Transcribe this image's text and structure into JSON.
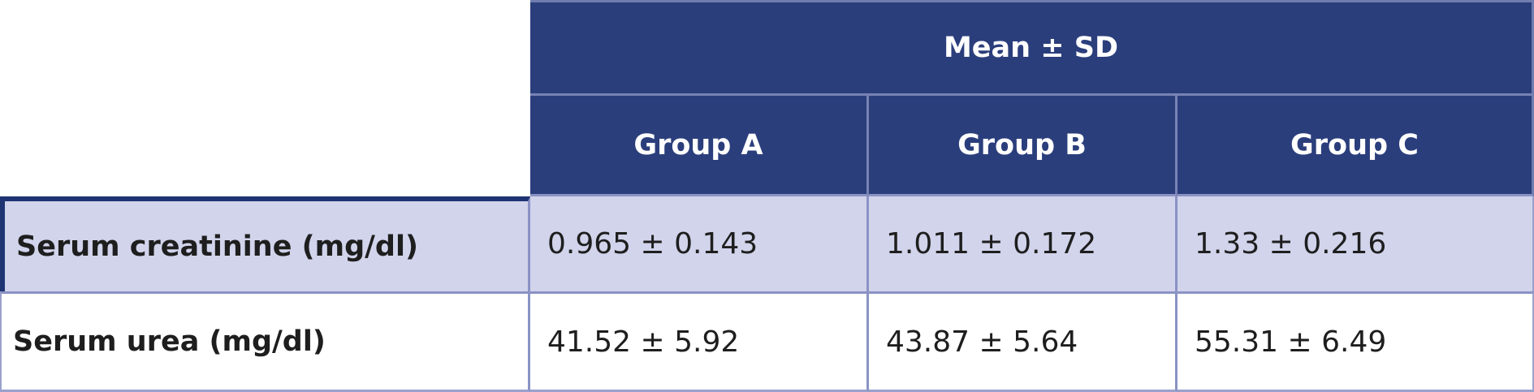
{
  "table": {
    "span_header": "Mean ± SD",
    "column_headers": [
      {
        "label": "Group A"
      },
      {
        "label": "Group B"
      },
      {
        "label": "Group C"
      }
    ],
    "rows": [
      {
        "label": "Serum creatinine (mg/dl)",
        "values": [
          "0.965 ± 0.143",
          "1.011 ± 0.172",
          "1.33 ± 0.216"
        ]
      },
      {
        "label": "Serum urea (mg/dl)",
        "values": [
          "41.52 ± 5.92",
          "43.87 ± 5.64",
          "55.31 ± 6.49"
        ]
      }
    ]
  },
  "colors": {
    "header_bg": "#2b3e7c",
    "header_text": "#ffffff",
    "highlight_row_bg": "#d1d4eb",
    "plain_row_bg": "#ffffff",
    "body_text": "#1e1e1e",
    "dark_border": "#1f3472",
    "light_border": "#8a93c4",
    "header_divider": "#7883b4",
    "outer_border": "#99a1cc"
  },
  "chart_data": {
    "type": "table",
    "title": "Mean ± SD",
    "columns": [
      "",
      "Group A",
      "Group B",
      "Group C"
    ],
    "rows": [
      [
        "Serum creatinine (mg/dl)",
        "0.965 ± 0.143",
        "1.011 ± 0.172",
        "1.33 ± 0.216"
      ],
      [
        "Serum urea (mg/dl)",
        "41.52 ± 5.92",
        "43.87 ± 5.64",
        "55.31 ± 6.49"
      ]
    ],
    "numeric": {
      "serum_creatinine_mg_dl": {
        "mean": [
          0.965,
          1.011,
          1.33
        ],
        "sd": [
          0.143,
          0.172,
          0.216
        ]
      },
      "serum_urea_mg_dl": {
        "mean": [
          41.52,
          43.87,
          55.31
        ],
        "sd": [
          5.92,
          5.64,
          6.49
        ]
      }
    }
  }
}
